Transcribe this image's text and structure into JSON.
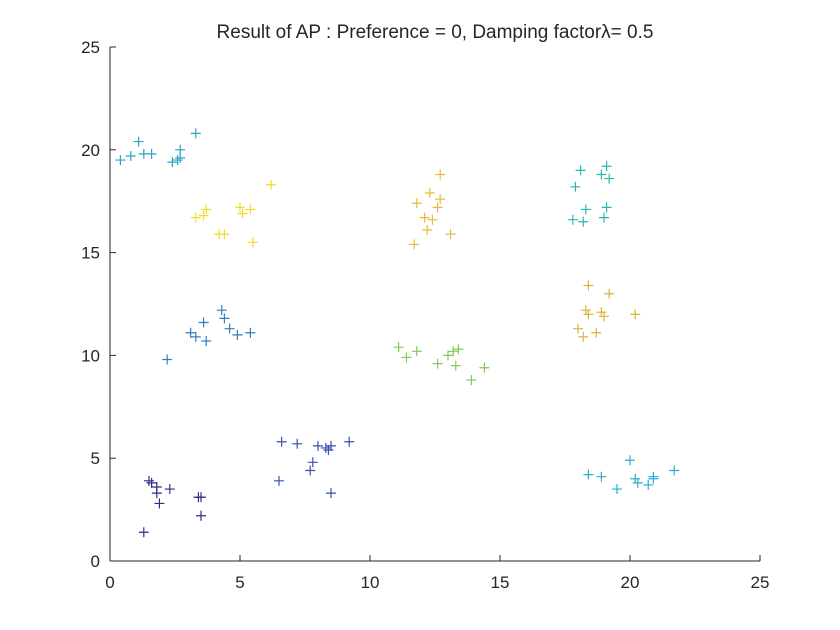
{
  "chart_data": {
    "type": "scatter",
    "title": "Result of AP : Preference = 0, Damping factorλ= 0.5",
    "xlabel": "",
    "ylabel": "",
    "xlim": [
      0,
      25
    ],
    "ylim": [
      0,
      25
    ],
    "xticks": [
      "0",
      "5",
      "10",
      "15",
      "20",
      "25"
    ],
    "yticks": [
      "0",
      "5",
      "10",
      "15",
      "20",
      "25"
    ],
    "grid": false,
    "marker": "+",
    "series": [
      {
        "color": "#2e2f8a",
        "points": [
          [
            1.3,
            1.4
          ],
          [
            1.5,
            3.9
          ],
          [
            1.6,
            3.8
          ],
          [
            1.8,
            3.6
          ],
          [
            1.8,
            3.3
          ],
          [
            1.9,
            2.8
          ],
          [
            2.3,
            3.5
          ],
          [
            3.4,
            3.1
          ],
          [
            3.5,
            3.1
          ],
          [
            3.5,
            2.2
          ]
        ]
      },
      {
        "color": "#3a4fb3",
        "points": [
          [
            6.5,
            3.9
          ],
          [
            6.6,
            5.8
          ],
          [
            7.2,
            5.7
          ],
          [
            7.7,
            4.4
          ],
          [
            7.8,
            4.8
          ],
          [
            8.0,
            5.6
          ],
          [
            8.3,
            5.5
          ],
          [
            8.4,
            5.4
          ],
          [
            8.5,
            5.6
          ],
          [
            8.5,
            3.3
          ],
          [
            9.2,
            5.8
          ]
        ]
      },
      {
        "color": "#2f7fc4",
        "points": [
          [
            2.2,
            9.8
          ],
          [
            3.1,
            11.1
          ],
          [
            3.3,
            10.9
          ],
          [
            3.6,
            11.6
          ],
          [
            3.7,
            10.7
          ],
          [
            4.3,
            12.2
          ],
          [
            4.4,
            11.8
          ],
          [
            4.6,
            11.3
          ],
          [
            4.9,
            11.0
          ],
          [
            5.4,
            11.1
          ]
        ]
      },
      {
        "color": "#2ea1c9",
        "points": [
          [
            0.4,
            19.5
          ],
          [
            0.8,
            19.7
          ],
          [
            1.1,
            20.4
          ],
          [
            1.3,
            19.8
          ],
          [
            1.6,
            19.8
          ],
          [
            2.4,
            19.4
          ],
          [
            2.6,
            19.5
          ],
          [
            2.7,
            20.0
          ],
          [
            2.7,
            19.6
          ],
          [
            3.3,
            20.8
          ]
        ]
      },
      {
        "color": "#2aaed6",
        "points": [
          [
            18.4,
            4.2
          ],
          [
            18.9,
            4.1
          ],
          [
            19.5,
            3.5
          ],
          [
            20.0,
            4.9
          ],
          [
            20.2,
            4.0
          ],
          [
            20.3,
            3.8
          ],
          [
            20.7,
            3.7
          ],
          [
            20.9,
            4.1
          ],
          [
            20.9,
            4.0
          ],
          [
            21.7,
            4.4
          ]
        ]
      },
      {
        "color": "#2cb8b0",
        "points": [
          [
            17.8,
            16.6
          ],
          [
            17.9,
            18.2
          ],
          [
            18.1,
            19.0
          ],
          [
            18.2,
            16.5
          ],
          [
            18.3,
            17.1
          ],
          [
            18.9,
            18.8
          ],
          [
            19.0,
            16.7
          ],
          [
            19.1,
            19.2
          ],
          [
            19.1,
            17.2
          ],
          [
            19.2,
            18.6
          ]
        ]
      },
      {
        "color": "#83c65a",
        "points": [
          [
            11.1,
            10.4
          ],
          [
            11.4,
            9.9
          ],
          [
            11.8,
            10.2
          ],
          [
            12.6,
            9.6
          ],
          [
            13.2,
            10.2
          ],
          [
            13.3,
            9.5
          ],
          [
            13.4,
            10.3
          ],
          [
            13.9,
            8.8
          ],
          [
            14.4,
            9.4
          ],
          [
            13.0,
            10.0
          ]
        ]
      },
      {
        "color": "#d8b53a",
        "points": [
          [
            18.0,
            11.3
          ],
          [
            18.2,
            10.9
          ],
          [
            18.3,
            12.2
          ],
          [
            18.4,
            13.4
          ],
          [
            18.4,
            12.0
          ],
          [
            18.7,
            11.1
          ],
          [
            18.9,
            12.1
          ],
          [
            19.0,
            11.9
          ],
          [
            19.2,
            13.0
          ],
          [
            20.2,
            12.0
          ]
        ]
      },
      {
        "color": "#e8bc3a",
        "points": [
          [
            11.7,
            15.4
          ],
          [
            11.8,
            17.4
          ],
          [
            12.1,
            16.7
          ],
          [
            12.2,
            16.1
          ],
          [
            12.3,
            17.9
          ],
          [
            12.4,
            16.6
          ],
          [
            12.6,
            17.2
          ],
          [
            12.7,
            17.6
          ],
          [
            12.7,
            18.8
          ],
          [
            13.1,
            15.9
          ]
        ]
      },
      {
        "color": "#f2dc2a",
        "points": [
          [
            3.3,
            16.7
          ],
          [
            3.6,
            16.8
          ],
          [
            3.7,
            17.1
          ],
          [
            4.2,
            15.9
          ],
          [
            4.4,
            15.9
          ],
          [
            5.0,
            17.2
          ],
          [
            5.1,
            16.9
          ],
          [
            5.4,
            17.1
          ],
          [
            5.5,
            15.5
          ],
          [
            6.2,
            18.3
          ]
        ]
      }
    ]
  }
}
